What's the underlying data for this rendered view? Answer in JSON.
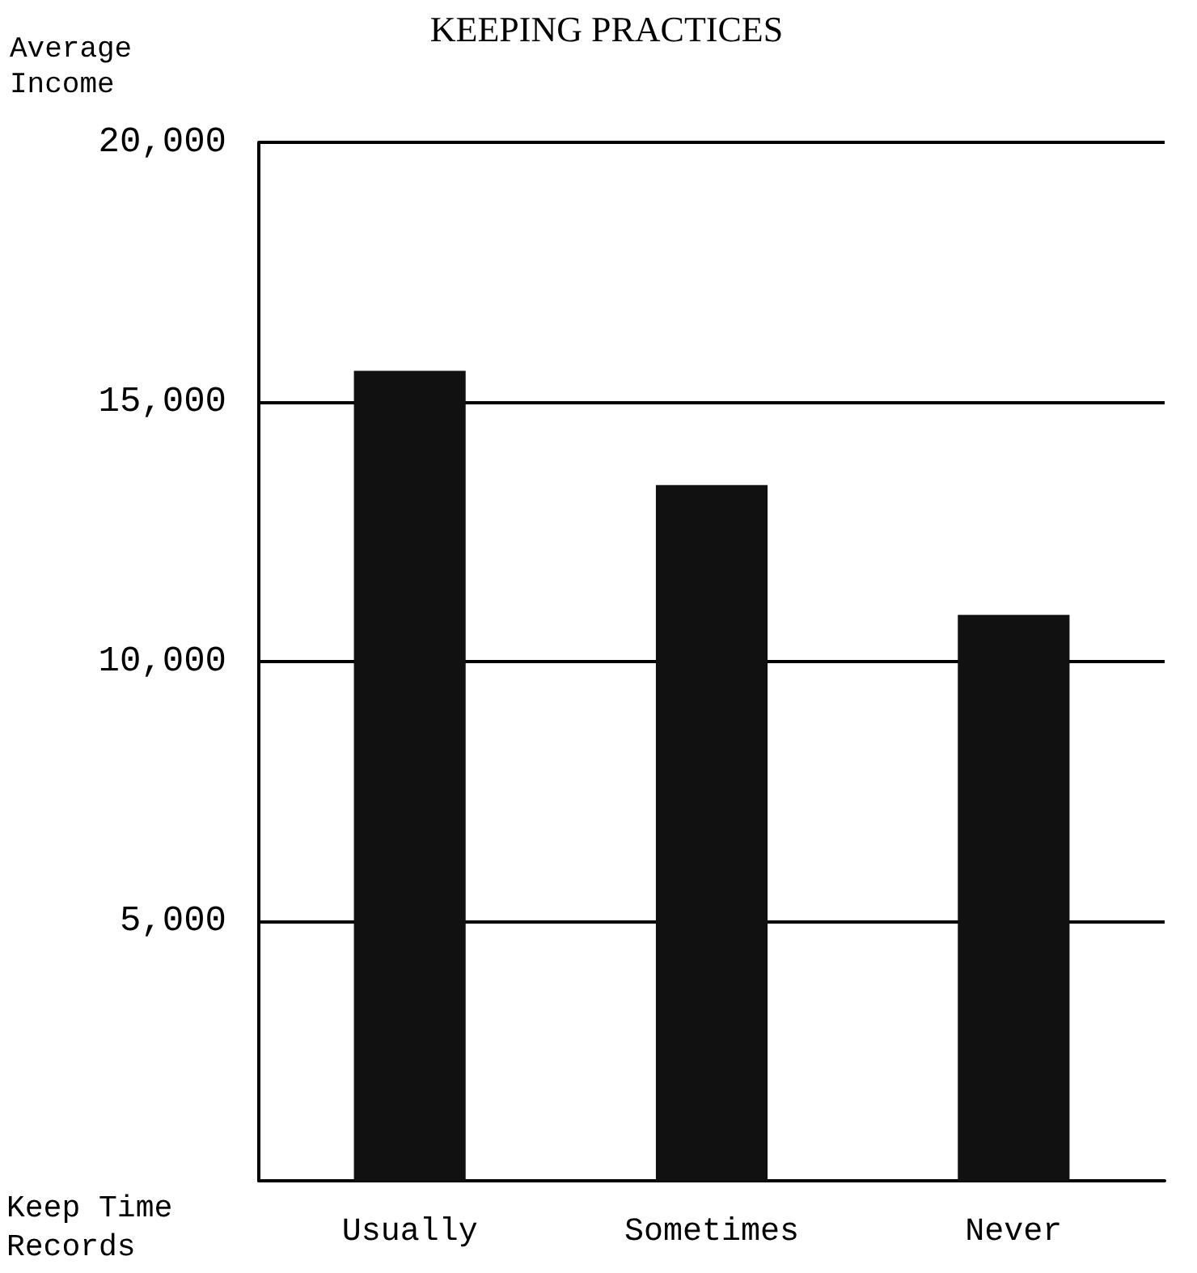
{
  "chart_data": {
    "type": "bar",
    "title": "KEEPING PRACTICES",
    "ylabel": "Average\nIncome",
    "xlabel": "Keep Time\nRecords",
    "categories": [
      "Usually",
      "Sometimes",
      "Never"
    ],
    "values": [
      15600,
      13400,
      10900
    ],
    "color": "#111111",
    "ylim": [
      0,
      20000
    ],
    "yticks": [
      {
        "value": 5000,
        "label": "5,000"
      },
      {
        "value": 10000,
        "label": "10,000"
      },
      {
        "value": 15000,
        "label": "15,000"
      },
      {
        "value": 20000,
        "label": "20,000"
      }
    ],
    "grid": "y"
  }
}
